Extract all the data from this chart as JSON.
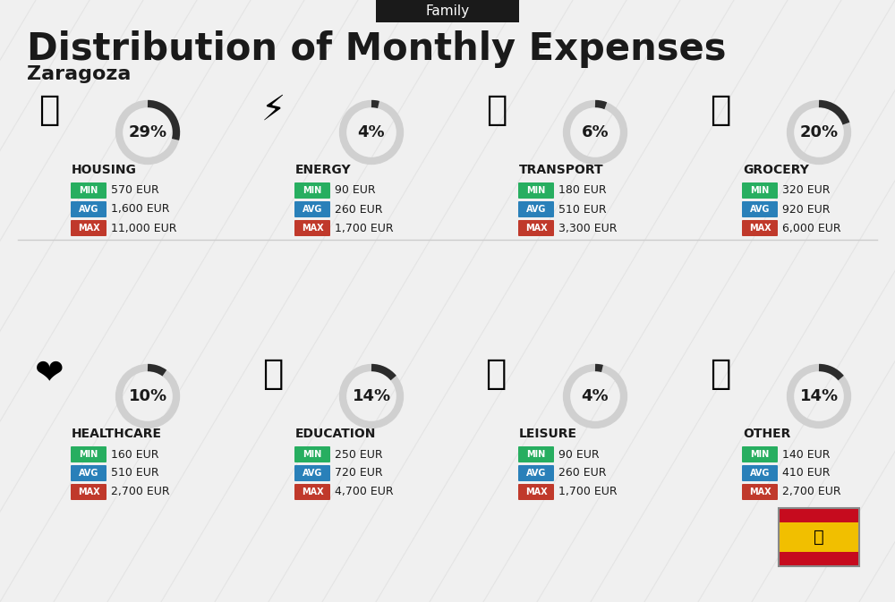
{
  "title": "Distribution of Monthly Expenses",
  "subtitle": "Family",
  "city": "Zaragoza",
  "bg_color": "#f0f0f0",
  "categories": [
    {
      "name": "HOUSING",
      "pct": 29,
      "min": "570 EUR",
      "avg": "1,600 EUR",
      "max": "11,000 EUR",
      "row": 0,
      "col": 0
    },
    {
      "name": "ENERGY",
      "pct": 4,
      "min": "90 EUR",
      "avg": "260 EUR",
      "max": "1,700 EUR",
      "row": 0,
      "col": 1
    },
    {
      "name": "TRANSPORT",
      "pct": 6,
      "min": "180 EUR",
      "avg": "510 EUR",
      "max": "3,300 EUR",
      "row": 0,
      "col": 2
    },
    {
      "name": "GROCERY",
      "pct": 20,
      "min": "320 EUR",
      "avg": "920 EUR",
      "max": "6,000 EUR",
      "row": 0,
      "col": 3
    },
    {
      "name": "HEALTHCARE",
      "pct": 10,
      "min": "160 EUR",
      "avg": "510 EUR",
      "max": "2,700 EUR",
      "row": 1,
      "col": 0
    },
    {
      "name": "EDUCATION",
      "pct": 14,
      "min": "250 EUR",
      "avg": "720 EUR",
      "max": "4,700 EUR",
      "row": 1,
      "col": 1
    },
    {
      "name": "LEISURE",
      "pct": 4,
      "min": "90 EUR",
      "avg": "260 EUR",
      "max": "1,700 EUR",
      "row": 1,
      "col": 2
    },
    {
      "name": "OTHER",
      "pct": 14,
      "min": "140 EUR",
      "avg": "410 EUR",
      "max": "2,700 EUR",
      "row": 1,
      "col": 3
    }
  ],
  "min_color": "#27ae60",
  "avg_color": "#2980b9",
  "max_color": "#c0392b",
  "label_text_color": "#ffffff",
  "value_text_color": "#1a1a1a",
  "category_name_color": "#1a1a1a",
  "pct_color": "#1a1a1a",
  "circle_color": "#2c2c2c",
  "circle_bg": "#d0d0d0",
  "title_color": "#1a1a1a",
  "subtitle_bg": "#1a1a1a",
  "subtitle_text_color": "#ffffff"
}
